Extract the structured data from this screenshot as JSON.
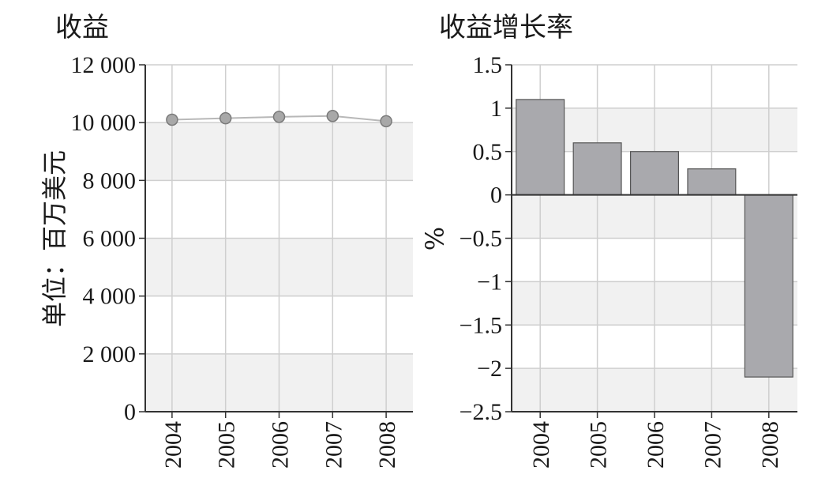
{
  "chart_data": [
    {
      "type": "line",
      "title": "收益",
      "ylabel": "单位：百万美元",
      "xlabel": "",
      "categories": [
        "2004",
        "2005",
        "2006",
        "2007",
        "2008"
      ],
      "values": [
        10100,
        10150,
        10200,
        10230,
        10050
      ],
      "ylim": [
        0,
        12000
      ],
      "y_ticks": [
        0,
        2000,
        4000,
        6000,
        8000,
        10000,
        12000
      ],
      "y_tick_labels": [
        "0",
        "2 000",
        "4 000",
        "6 000",
        "8 000",
        "10 000",
        "12 000"
      ],
      "grid": true,
      "colors": {
        "line": "#b8b8b8",
        "marker": "#a8a8a8",
        "band": "#f1f1f1",
        "grid": "#cfcfcf"
      }
    },
    {
      "type": "bar",
      "title": "收益增长率",
      "ylabel": "%",
      "xlabel": "",
      "categories": [
        "2004",
        "2005",
        "2006",
        "2007",
        "2008"
      ],
      "values": [
        1.1,
        0.6,
        0.5,
        0.3,
        -2.1
      ],
      "ylim": [
        -2.5,
        1.5
      ],
      "y_ticks": [
        -2.5,
        -2,
        -1.5,
        -1,
        -0.5,
        0,
        0.5,
        1,
        1.5
      ],
      "y_tick_labels": [
        "−2.5",
        "−2",
        "−1.5",
        "−1",
        "−0.5",
        "0",
        "0.5",
        "1",
        "1.5"
      ],
      "grid": true,
      "colors": {
        "bar": "#a9a9ad",
        "bar_edge": "#555555",
        "band": "#f1f1f1",
        "grid": "#cfcfcf"
      }
    }
  ]
}
